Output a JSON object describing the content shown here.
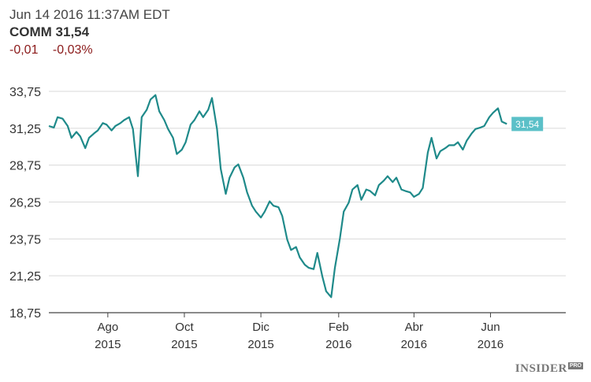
{
  "header": {
    "timestamp": "Jun 14 2016 11:37AM EDT",
    "ticker_label": "COMM 31,54",
    "change_abs": "-0,01",
    "change_pct": "-0,03%"
  },
  "logo": {
    "name": "INSIDER",
    "tag": "PRO"
  },
  "colors": {
    "line": "#1f8a8a",
    "grid": "#d9d9d9",
    "axis": "#444444",
    "negative": "#8b1a1a",
    "badge": "#5bc0c8"
  },
  "chart_data": {
    "type": "line",
    "title": "",
    "xlabel": "",
    "ylabel": "",
    "ylim": [
      18.75,
      33.75
    ],
    "y_ticks": [
      "33,75",
      "31,25",
      "28,75",
      "26,25",
      "23,75",
      "21,25",
      "18,75"
    ],
    "y_tick_values": [
      33.75,
      31.25,
      28.75,
      26.25,
      23.75,
      21.25,
      18.75
    ],
    "xlim": [
      "2015-06-15",
      "2016-07-31"
    ],
    "x_ticks": [
      {
        "month": "Ago",
        "year": "2015",
        "date": "2015-08-01"
      },
      {
        "month": "Oct",
        "year": "2015",
        "date": "2015-10-01"
      },
      {
        "month": "Dic",
        "year": "2015",
        "date": "2015-12-01"
      },
      {
        "month": "Feb",
        "year": "2016",
        "date": "2016-02-01"
      },
      {
        "month": "Abr",
        "year": "2016",
        "date": "2016-04-01"
      },
      {
        "month": "Jun",
        "year": "2016",
        "date": "2016-06-01"
      }
    ],
    "last_label": "31,54",
    "grid": true,
    "series": [
      {
        "x": [
          "2015-06-15",
          "2015-06-19",
          "2015-06-22",
          "2015-06-26",
          "2015-06-30",
          "2015-07-03",
          "2015-07-07",
          "2015-07-10",
          "2015-07-14",
          "2015-07-17",
          "2015-07-21",
          "2015-07-24",
          "2015-07-28",
          "2015-07-31",
          "2015-08-04",
          "2015-08-07",
          "2015-08-11",
          "2015-08-14",
          "2015-08-18",
          "2015-08-21",
          "2015-08-25",
          "2015-08-28",
          "2015-09-01",
          "2015-09-04",
          "2015-09-08",
          "2015-09-11",
          "2015-09-15",
          "2015-09-18",
          "2015-09-22",
          "2015-09-25",
          "2015-09-29",
          "2015-10-02",
          "2015-10-06",
          "2015-10-09",
          "2015-10-13",
          "2015-10-16",
          "2015-10-20",
          "2015-10-23",
          "2015-10-27",
          "2015-10-30",
          "2015-11-03",
          "2015-11-06",
          "2015-11-10",
          "2015-11-13",
          "2015-11-17",
          "2015-11-20",
          "2015-11-24",
          "2015-11-27",
          "2015-12-01",
          "2015-12-04",
          "2015-12-08",
          "2015-12-11",
          "2015-12-15",
          "2015-12-18",
          "2015-12-22",
          "2015-12-25",
          "2015-12-29",
          "2016-01-01",
          "2016-01-05",
          "2016-01-08",
          "2016-01-12",
          "2016-01-15",
          "2016-01-19",
          "2016-01-22",
          "2016-01-26",
          "2016-01-29",
          "2016-02-02",
          "2016-02-05",
          "2016-02-09",
          "2016-02-12",
          "2016-02-16",
          "2016-02-19",
          "2016-02-23",
          "2016-02-26",
          "2016-03-01",
          "2016-03-04",
          "2016-03-08",
          "2016-03-11",
          "2016-03-15",
          "2016-03-18",
          "2016-03-22",
          "2016-03-25",
          "2016-03-29",
          "2016-04-01",
          "2016-04-05",
          "2016-04-08",
          "2016-04-12",
          "2016-04-15",
          "2016-04-19",
          "2016-04-22",
          "2016-04-26",
          "2016-04-29",
          "2016-05-03",
          "2016-05-06",
          "2016-05-10",
          "2016-05-13",
          "2016-05-17",
          "2016-05-20",
          "2016-05-24",
          "2016-05-27",
          "2016-05-31",
          "2016-06-03",
          "2016-06-07",
          "2016-06-10",
          "2016-06-14"
        ],
        "y": [
          31.4,
          31.3,
          32.0,
          31.9,
          31.4,
          30.6,
          31.0,
          30.7,
          29.9,
          30.6,
          30.9,
          31.1,
          31.6,
          31.5,
          31.1,
          31.4,
          31.6,
          31.8,
          32.0,
          31.2,
          28.0,
          32.0,
          32.5,
          33.2,
          33.5,
          32.4,
          31.8,
          31.2,
          30.6,
          29.5,
          29.8,
          30.3,
          31.5,
          31.8,
          32.4,
          32.0,
          32.5,
          33.3,
          31.2,
          28.5,
          26.8,
          27.9,
          28.6,
          28.8,
          27.9,
          26.9,
          26.0,
          25.6,
          25.2,
          25.6,
          26.3,
          26.0,
          25.9,
          25.3,
          23.7,
          23.0,
          23.2,
          22.5,
          22.0,
          21.8,
          21.7,
          22.8,
          21.2,
          20.2,
          19.8,
          21.8,
          23.8,
          25.6,
          26.2,
          27.1,
          27.4,
          26.4,
          27.1,
          27.0,
          26.7,
          27.4,
          27.7,
          28.0,
          27.6,
          27.9,
          27.1,
          27.0,
          26.9,
          26.6,
          26.8,
          27.2,
          29.6,
          30.6,
          29.2,
          29.7,
          29.9,
          30.1,
          30.1,
          30.3,
          29.8,
          30.4,
          30.9,
          31.2,
          31.3,
          31.4,
          32.0,
          32.3,
          32.6,
          31.7,
          31.54
        ]
      }
    ]
  }
}
